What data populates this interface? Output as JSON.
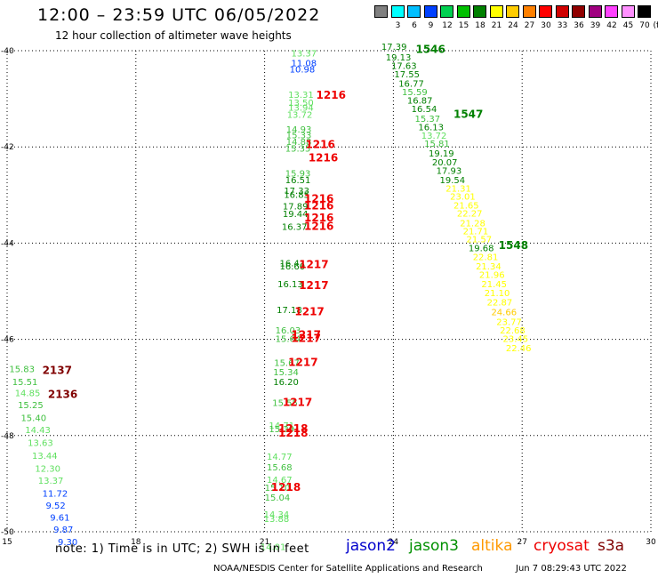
{
  "title": "12:00 – 23:59 UTC 06/05/2022",
  "subtitle": "12 hour collection of altimeter wave heights",
  "color_scale": {
    "unit": "(ft)",
    "bins": [
      {
        "label": "",
        "color": "#808080"
      },
      {
        "label": "3",
        "color": "#00ffff"
      },
      {
        "label": "6",
        "color": "#00bfff"
      },
      {
        "label": "9",
        "color": "#0040ff"
      },
      {
        "label": "12",
        "color": "#00d050"
      },
      {
        "label": "15",
        "color": "#00c000"
      },
      {
        "label": "18",
        "color": "#008000"
      },
      {
        "label": "21",
        "color": "#ffff00"
      },
      {
        "label": "24",
        "color": "#ffcc00"
      },
      {
        "label": "27",
        "color": "#ff8000"
      },
      {
        "label": "30",
        "color": "#ff0000"
      },
      {
        "label": "33",
        "color": "#d00000"
      },
      {
        "label": "36",
        "color": "#900000"
      },
      {
        "label": "39",
        "color": "#a00080"
      },
      {
        "label": "42",
        "color": "#ff40ff"
      },
      {
        "label": "45",
        "color": "#ff90ff"
      },
      {
        "label": "70",
        "color": "#000000"
      }
    ]
  },
  "footnote": "note: 1) Time is in UTC; 2) SWH is in feet",
  "satellites": [
    {
      "name": "jason2",
      "color": "#0000cc"
    },
    {
      "name": "jason3",
      "color": "#009000"
    },
    {
      "name": "altika",
      "color": "#ff9900"
    },
    {
      "name": "cryosat",
      "color": "#ee0000"
    },
    {
      "name": "s3a",
      "color": "#800000"
    }
  ],
  "credit": "NOAA/NESDIS Center for Satellite Applications and Research",
  "timestamp": "Jun  7 08:29:43 UTC 2022",
  "chart_data": {
    "type": "scatter",
    "xlim": [
      15,
      30
    ],
    "ylim": [
      -50,
      -40
    ],
    "xticks": [
      "15",
      "18",
      "21",
      "24",
      "27",
      "30"
    ],
    "yticks": [
      "-40",
      "-42",
      "-44",
      "-46",
      "-48",
      "-50"
    ],
    "grid": true,
    "wave_heights": [
      {
        "lon": 21.62,
        "lat": -40.12,
        "label": "13.37",
        "color": "#60e060"
      },
      {
        "lon": 21.62,
        "lat": -40.32,
        "label": "11.08",
        "color": "#0040ff"
      },
      {
        "lon": 21.58,
        "lat": -40.45,
        "label": "10.98",
        "color": "#0040ff"
      },
      {
        "lon": 21.55,
        "lat": -40.98,
        "label": "13.31",
        "color": "#60e060"
      },
      {
        "lon": 21.55,
        "lat": -41.15,
        "label": "13.50",
        "color": "#60e060"
      },
      {
        "lon": 21.55,
        "lat": -41.25,
        "label": "13.94",
        "color": "#60e060"
      },
      {
        "lon": 21.52,
        "lat": -41.4,
        "label": "13.72",
        "color": "#60e060"
      },
      {
        "lon": 21.5,
        "lat": -41.7,
        "label": "14.93",
        "color": "#40c040"
      },
      {
        "lon": 21.5,
        "lat": -41.82,
        "label": "15.33",
        "color": "#40c040"
      },
      {
        "lon": 21.5,
        "lat": -41.96,
        "label": "14.88",
        "color": "#40c040"
      },
      {
        "lon": 21.48,
        "lat": -42.1,
        "label": "15.35",
        "color": "#40c040"
      },
      {
        "lon": 21.48,
        "lat": -42.62,
        "label": "15.93",
        "color": "#40c040"
      },
      {
        "lon": 21.48,
        "lat": -42.75,
        "label": "16.51",
        "color": "#008000"
      },
      {
        "lon": 21.45,
        "lat": -42.98,
        "label": "17.33",
        "color": "#008000"
      },
      {
        "lon": 21.45,
        "lat": -43.06,
        "label": "16.85",
        "color": "#008000"
      },
      {
        "lon": 21.42,
        "lat": -43.3,
        "label": "17.89",
        "color": "#008000"
      },
      {
        "lon": 21.42,
        "lat": -43.46,
        "label": "19.44",
        "color": "#008000"
      },
      {
        "lon": 21.4,
        "lat": -43.72,
        "label": "16.37",
        "color": "#008000"
      },
      {
        "lon": 21.35,
        "lat": -44.48,
        "label": "16.41",
        "color": "#008000"
      },
      {
        "lon": 21.35,
        "lat": -44.55,
        "label": "16.60",
        "color": "#008000"
      },
      {
        "lon": 21.3,
        "lat": -44.92,
        "label": "16.13",
        "color": "#008000"
      },
      {
        "lon": 21.28,
        "lat": -45.45,
        "label": "17.18",
        "color": "#008000"
      },
      {
        "lon": 21.25,
        "lat": -45.88,
        "label": "16.03",
        "color": "#40c040"
      },
      {
        "lon": 21.25,
        "lat": -46.05,
        "label": "15.64",
        "color": "#40c040"
      },
      {
        "lon": 21.22,
        "lat": -46.55,
        "label": "15.67",
        "color": "#40c040"
      },
      {
        "lon": 21.2,
        "lat": -46.75,
        "label": "15.34",
        "color": "#40c040"
      },
      {
        "lon": 21.2,
        "lat": -46.95,
        "label": "16.20",
        "color": "#008000"
      },
      {
        "lon": 21.18,
        "lat": -47.38,
        "label": "15.55",
        "color": "#40c040"
      },
      {
        "lon": 21.1,
        "lat": -47.86,
        "label": "14.71",
        "color": "#60e060"
      },
      {
        "lon": 21.1,
        "lat": -47.93,
        "label": "15.29",
        "color": "#40c040"
      },
      {
        "lon": 21.05,
        "lat": -48.5,
        "label": "14.77",
        "color": "#60e060"
      },
      {
        "lon": 21.05,
        "lat": -48.72,
        "label": "15.68",
        "color": "#40c040"
      },
      {
        "lon": 21.05,
        "lat": -48.98,
        "label": "14.67",
        "color": "#60e060"
      },
      {
        "lon": 21.0,
        "lat": -49.15,
        "label": "15.10",
        "color": "#40c040"
      },
      {
        "lon": 21.0,
        "lat": -49.35,
        "label": "15.04",
        "color": "#40c040"
      },
      {
        "lon": 20.98,
        "lat": -49.7,
        "label": "14.34",
        "color": "#60e060"
      },
      {
        "lon": 20.98,
        "lat": -49.8,
        "label": "13.88",
        "color": "#60e060"
      },
      {
        "lon": 20.9,
        "lat": -50.38,
        "label": "14.01",
        "color": "#60e060"
      },
      {
        "lon": 23.72,
        "lat": -39.98,
        "label": "17.39",
        "color": "#008000"
      },
      {
        "lon": 23.82,
        "lat": -40.2,
        "label": "19.13",
        "color": "#008000"
      },
      {
        "lon": 23.95,
        "lat": -40.38,
        "label": "17.63",
        "color": "#008000"
      },
      {
        "lon": 24.02,
        "lat": -40.55,
        "label": "17.55",
        "color": "#008000"
      },
      {
        "lon": 24.12,
        "lat": -40.75,
        "label": "16.77",
        "color": "#008000"
      },
      {
        "lon": 24.2,
        "lat": -40.92,
        "label": "15.59",
        "color": "#40c040"
      },
      {
        "lon": 24.32,
        "lat": -41.1,
        "label": "16.87",
        "color": "#008000"
      },
      {
        "lon": 24.42,
        "lat": -41.28,
        "label": "16.54",
        "color": "#008000"
      },
      {
        "lon": 24.5,
        "lat": -41.48,
        "label": "15.37",
        "color": "#40c040"
      },
      {
        "lon": 24.58,
        "lat": -41.65,
        "label": "16.13",
        "color": "#008000"
      },
      {
        "lon": 24.65,
        "lat": -41.83,
        "label": "13.72",
        "color": "#60e060"
      },
      {
        "lon": 24.72,
        "lat": -42.0,
        "label": "15.81",
        "color": "#40c040"
      },
      {
        "lon": 24.82,
        "lat": -42.2,
        "label": "19.19",
        "color": "#008000"
      },
      {
        "lon": 24.9,
        "lat": -42.38,
        "label": "20.07",
        "color": "#008000"
      },
      {
        "lon": 25.0,
        "lat": -42.56,
        "label": "17.93",
        "color": "#008000"
      },
      {
        "lon": 25.08,
        "lat": -42.75,
        "label": "19.54",
        "color": "#008000"
      },
      {
        "lon": 25.22,
        "lat": -42.93,
        "label": "21.31",
        "color": "#ffff00"
      },
      {
        "lon": 25.32,
        "lat": -43.1,
        "label": "23.01",
        "color": "#ffff00"
      },
      {
        "lon": 25.4,
        "lat": -43.28,
        "label": "21.65",
        "color": "#ffff00"
      },
      {
        "lon": 25.48,
        "lat": -43.45,
        "label": "22.27",
        "color": "#ffff00"
      },
      {
        "lon": 25.55,
        "lat": -43.65,
        "label": "21.28",
        "color": "#ffff00"
      },
      {
        "lon": 25.62,
        "lat": -43.82,
        "label": "21.71",
        "color": "#ffff00"
      },
      {
        "lon": 25.7,
        "lat": -43.98,
        "label": "21.57",
        "color": "#ffff00"
      },
      {
        "lon": 25.75,
        "lat": -44.17,
        "label": "19.68",
        "color": "#008000"
      },
      {
        "lon": 25.85,
        "lat": -44.35,
        "label": "22.81",
        "color": "#ffff00"
      },
      {
        "lon": 25.92,
        "lat": -44.55,
        "label": "21.34",
        "color": "#ffff00"
      },
      {
        "lon": 26.0,
        "lat": -44.72,
        "label": "21.96",
        "color": "#ffff00"
      },
      {
        "lon": 26.05,
        "lat": -44.92,
        "label": "21.45",
        "color": "#ffff00"
      },
      {
        "lon": 26.12,
        "lat": -45.1,
        "label": "21.10",
        "color": "#ffff00"
      },
      {
        "lon": 26.18,
        "lat": -45.3,
        "label": "22.87",
        "color": "#ffff00"
      },
      {
        "lon": 26.28,
        "lat": -45.5,
        "label": "24.66",
        "color": "#ffcc00"
      },
      {
        "lon": 26.4,
        "lat": -45.7,
        "label": "23.77",
        "color": "#ffff00"
      },
      {
        "lon": 26.48,
        "lat": -45.88,
        "label": "22.68",
        "color": "#ffff00"
      },
      {
        "lon": 26.55,
        "lat": -46.05,
        "label": "23.45",
        "color": "#ffff00"
      },
      {
        "lon": 26.62,
        "lat": -46.25,
        "label": "22.46",
        "color": "#ffff00"
      },
      {
        "lon": 15.05,
        "lat": -46.68,
        "label": "15.83",
        "color": "#40c040"
      },
      {
        "lon": 15.12,
        "lat": -46.95,
        "label": "15.51",
        "color": "#40c040"
      },
      {
        "lon": 15.18,
        "lat": -47.18,
        "label": "14.85",
        "color": "#60e060"
      },
      {
        "lon": 15.25,
        "lat": -47.43,
        "label": "15.25",
        "color": "#40c040"
      },
      {
        "lon": 15.32,
        "lat": -47.7,
        "label": "15.40",
        "color": "#40c040"
      },
      {
        "lon": 15.42,
        "lat": -47.95,
        "label": "14.43",
        "color": "#60e060"
      },
      {
        "lon": 15.48,
        "lat": -48.22,
        "label": "13.63",
        "color": "#60e060"
      },
      {
        "lon": 15.58,
        "lat": -48.48,
        "label": "13.44",
        "color": "#60e060"
      },
      {
        "lon": 15.65,
        "lat": -48.75,
        "label": "12.30",
        "color": "#60e060"
      },
      {
        "lon": 15.72,
        "lat": -49.0,
        "label": "13.37",
        "color": "#60e060"
      },
      {
        "lon": 15.82,
        "lat": -49.27,
        "label": "11.72",
        "color": "#0040ff"
      },
      {
        "lon": 15.9,
        "lat": -49.52,
        "label": "9.52",
        "color": "#0040ff"
      },
      {
        "lon": 16.0,
        "lat": -49.77,
        "label": "9.61",
        "color": "#0040ff"
      },
      {
        "lon": 16.08,
        "lat": -50.02,
        "label": "9.87",
        "color": "#0040ff"
      },
      {
        "lon": 16.18,
        "lat": -50.28,
        "label": "9.30",
        "color": "#0040ff"
      }
    ],
    "pass_labels": [
      {
        "lon": 24.52,
        "lat": -40.05,
        "label": "1546",
        "color": "#008000"
      },
      {
        "lon": 25.4,
        "lat": -41.4,
        "label": "1547",
        "color": "#008000"
      },
      {
        "lon": 26.45,
        "lat": -44.12,
        "label": "1548",
        "color": "#008000"
      },
      {
        "lon": 22.2,
        "lat": -41.0,
        "label": "1216",
        "color": "#ee0000"
      },
      {
        "lon": 21.95,
        "lat": -42.02,
        "label": "1216",
        "color": "#ee0000"
      },
      {
        "lon": 22.02,
        "lat": -42.3,
        "label": "1216",
        "color": "#ee0000"
      },
      {
        "lon": 21.92,
        "lat": -43.15,
        "label": "1216",
        "color": "#ee0000"
      },
      {
        "lon": 21.92,
        "lat": -43.3,
        "label": "1216",
        "color": "#ee0000"
      },
      {
        "lon": 21.92,
        "lat": -43.55,
        "label": "1216",
        "color": "#ee0000"
      },
      {
        "lon": 21.92,
        "lat": -43.72,
        "label": "1216",
        "color": "#ee0000"
      },
      {
        "lon": 21.8,
        "lat": -44.52,
        "label": "1217",
        "color": "#ee0000"
      },
      {
        "lon": 21.8,
        "lat": -44.95,
        "label": "1217",
        "color": "#ee0000"
      },
      {
        "lon": 21.7,
        "lat": -45.5,
        "label": "1217",
        "color": "#ee0000"
      },
      {
        "lon": 21.62,
        "lat": -45.98,
        "label": "1217",
        "color": "#ee0000"
      },
      {
        "lon": 21.62,
        "lat": -46.05,
        "label": "1217",
        "color": "#ee0000"
      },
      {
        "lon": 21.55,
        "lat": -46.55,
        "label": "1217",
        "color": "#ee0000"
      },
      {
        "lon": 21.42,
        "lat": -47.38,
        "label": "1217",
        "color": "#ee0000"
      },
      {
        "lon": 21.32,
        "lat": -47.93,
        "label": "1218",
        "color": "#ee0000"
      },
      {
        "lon": 21.32,
        "lat": -48.02,
        "label": "1218",
        "color": "#ee0000"
      },
      {
        "lon": 21.15,
        "lat": -49.15,
        "label": "1218",
        "color": "#ee0000"
      },
      {
        "lon": 15.82,
        "lat": -46.72,
        "label": "2137",
        "color": "#800000"
      },
      {
        "lon": 15.95,
        "lat": -47.22,
        "label": "2136",
        "color": "#800000"
      }
    ]
  }
}
